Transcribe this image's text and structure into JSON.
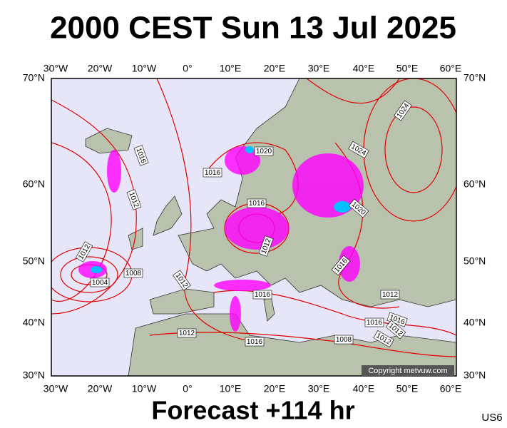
{
  "header": {
    "title": "2000 CEST Sun 13 Jul 2025"
  },
  "map": {
    "longitude_labels": [
      "30°W",
      "20°W",
      "10°W",
      "0°",
      "10°E",
      "20°E",
      "30°E",
      "40°E",
      "50°E",
      "60°E"
    ],
    "latitude_labels": [
      "70°N",
      "60°N",
      "50°N",
      "40°N",
      "30°N"
    ],
    "isobar_labels": [
      1020,
      1016,
      1016,
      1012,
      1016,
      1012,
      1024,
      1024,
      1020,
      1012,
      1008,
      1004,
      1012,
      1016,
      1016,
      1012,
      1016,
      1016,
      1012,
      1012,
      1016,
      1008,
      1012
    ],
    "copyright": "Copyright metvuw.com"
  },
  "footer": {
    "forecast": "Forecast +114 hr",
    "code": "US6"
  }
}
